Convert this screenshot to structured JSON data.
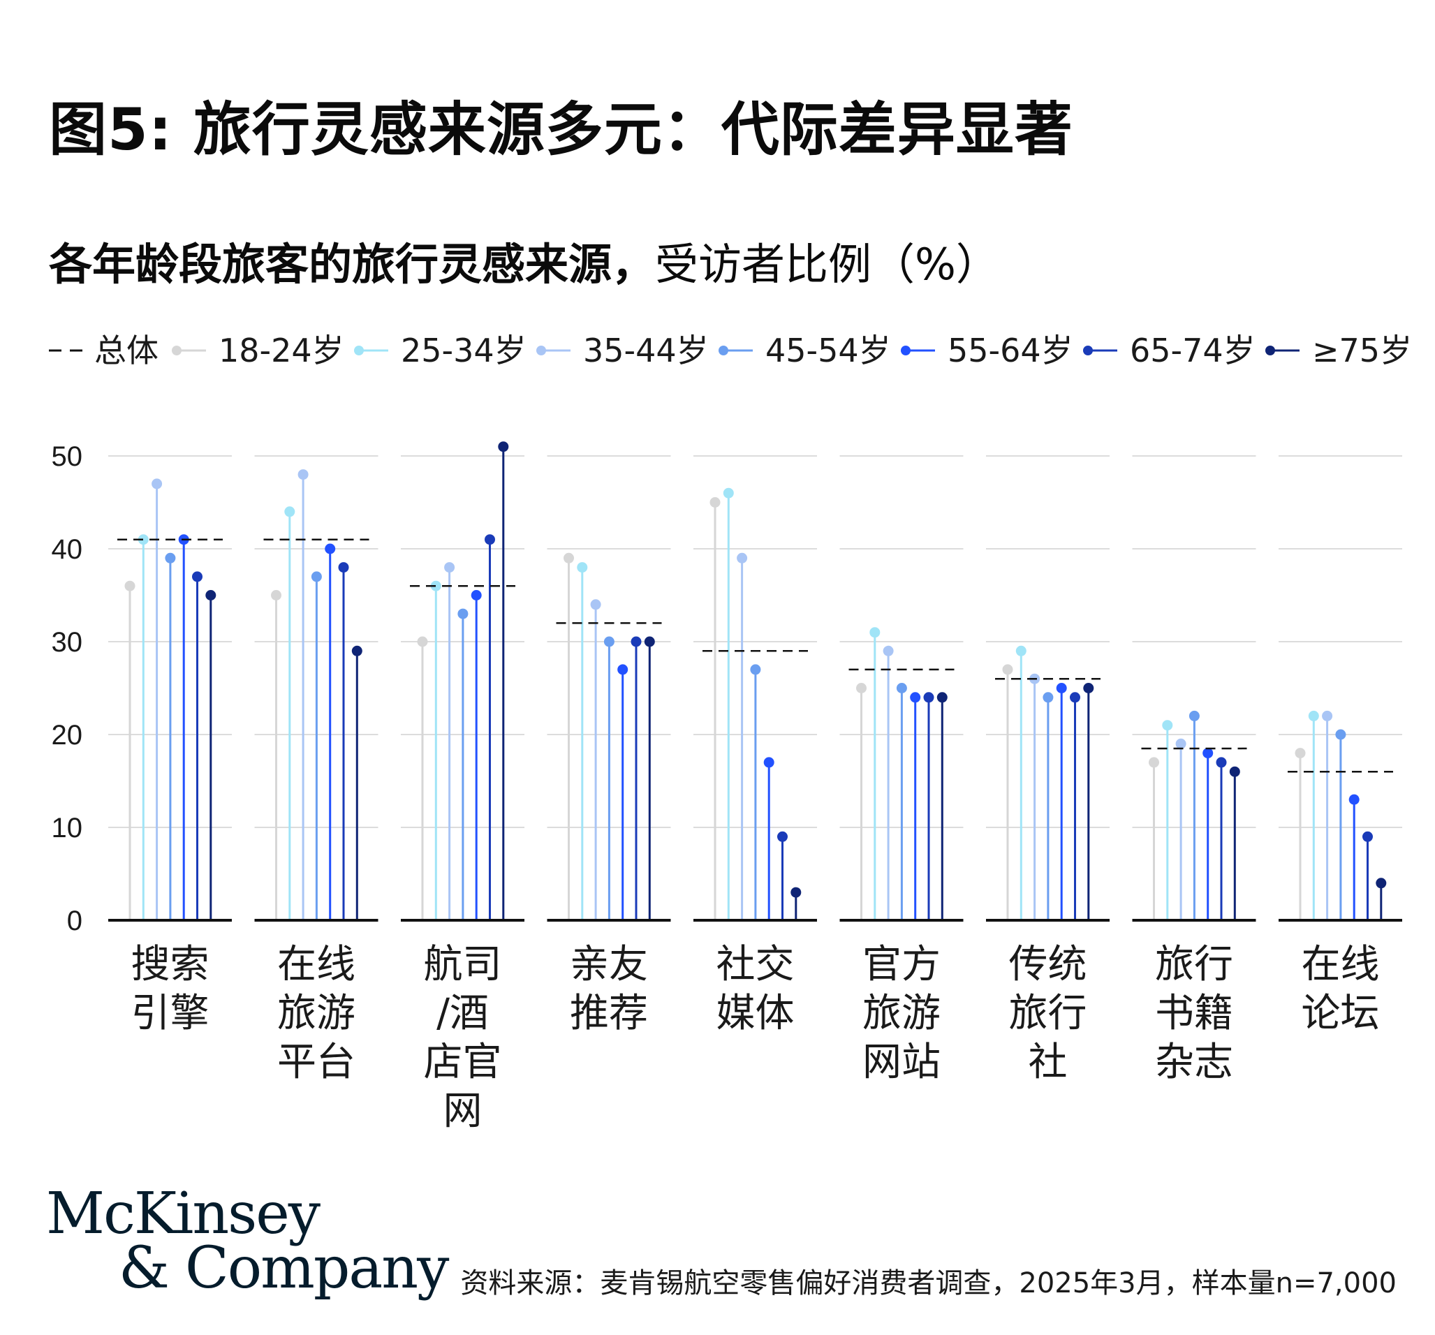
{
  "title": "图5: 旅行灵感来源多元：代际差异显著",
  "subtitle": {
    "bold": "各年龄段旅客的旅行灵感来源，",
    "light": "受访者比例（%）"
  },
  "source": "资料来源：麦肯锡航空零售偏好消费者调查，2025年3月，样本量n=7,000",
  "logo": {
    "line1": "McKinsey",
    "line2": "& Company"
  },
  "chart_data": {
    "type": "lollipop",
    "ylim": [
      0,
      50
    ],
    "yticks": [
      0,
      10,
      20,
      30,
      40,
      50
    ],
    "grid": true,
    "legend_placement": "top",
    "overall_label": "总体",
    "categories": [
      [
        "搜索",
        "引擎"
      ],
      [
        "在线",
        "旅游",
        "平台"
      ],
      [
        "航司",
        "/酒",
        "店官",
        "网"
      ],
      [
        "亲友",
        "推荐"
      ],
      [
        "社交",
        "媒体"
      ],
      [
        "官方",
        "旅游",
        "网站"
      ],
      [
        "传统",
        "旅行",
        "社"
      ],
      [
        "旅行",
        "书籍",
        "杂志"
      ],
      [
        "在线",
        "论坛"
      ]
    ],
    "overall": [
      41,
      41,
      36,
      32,
      29,
      27,
      26,
      18.5,
      16
    ],
    "series": [
      {
        "name": "18-24岁",
        "color": "#d6d6d6",
        "values": [
          36,
          35,
          30,
          39,
          45,
          25,
          27,
          17,
          18
        ]
      },
      {
        "name": "25-34岁",
        "color": "#a0e4f7",
        "values": [
          41,
          44,
          36,
          38,
          46,
          31,
          29,
          21,
          22
        ]
      },
      {
        "name": "35-44岁",
        "color": "#a9c5f5",
        "values": [
          47,
          48,
          38,
          34,
          39,
          29,
          26,
          19,
          22
        ]
      },
      {
        "name": "45-54岁",
        "color": "#6a9ef0",
        "values": [
          39,
          37,
          33,
          30,
          27,
          25,
          24,
          22,
          20
        ]
      },
      {
        "name": "55-64岁",
        "color": "#2251ff",
        "values": [
          41,
          40,
          35,
          27,
          17,
          24,
          25,
          18,
          13
        ]
      },
      {
        "name": "65-74岁",
        "color": "#1a3bb8",
        "values": [
          37,
          38,
          41,
          30,
          9,
          24,
          24,
          17,
          9
        ]
      },
      {
        "name": "≥75岁",
        "color": "#0f2475",
        "values": [
          35,
          29,
          51,
          30,
          3,
          24,
          25,
          16,
          4
        ]
      }
    ]
  }
}
